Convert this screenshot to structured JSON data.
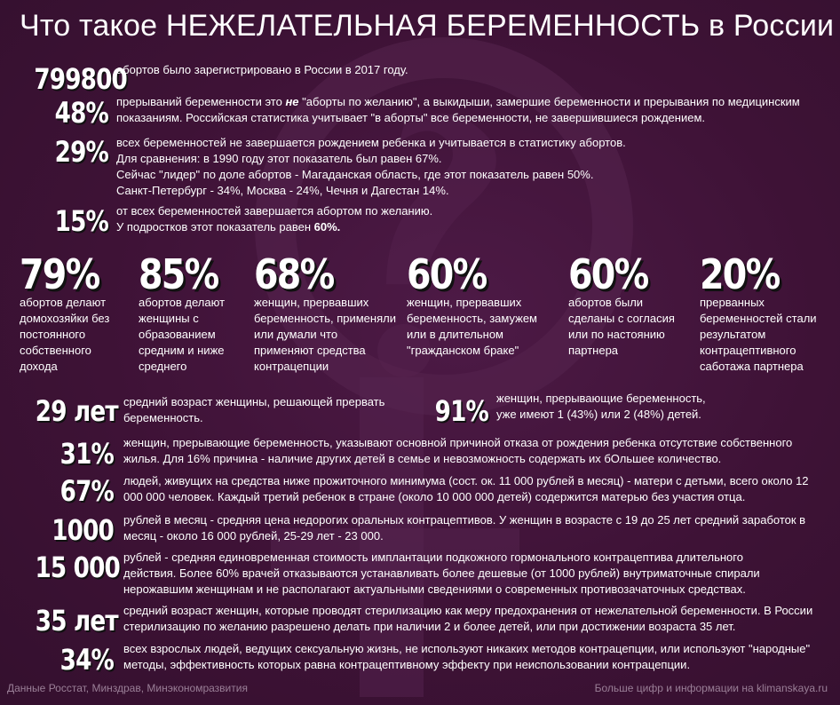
{
  "title": "Что такое НЕЖЕЛАТЕЛЬНАЯ БЕРЕМЕННОСТЬ в России",
  "rows_top": [
    {
      "num": "799800",
      "lines": [
        "абортов было зарегистрировано в России в 2017 году."
      ]
    },
    {
      "num": "48%",
      "lines_rich": "прерываний беременности это <b>не</b> \"аборты по желанию\", а выкидыши, замершие беременности и прерывания по медицинским показаниям. Российская статистика учитывает \"в аборты\" все беременности, не завершившиеся рождением."
    },
    {
      "num": "29%",
      "lines": [
        "всех беременностей не завершается рождением ребенка и учитывается в статистику абортов.",
        "Для сравнения: в 1990 году этот показатель был равен 67%.",
        "Сейчас \"лидер\" по доле абортов - Магаданская область, где этот показатель равен 50%.",
        "Санкт-Петербург - 34%, Москва - 24%, Чечня и Дагестан 14%."
      ]
    },
    {
      "num": "15%",
      "line1": "от всех беременностей завершается абортом по желанию.",
      "line2_prefix": "У подростков этот показатель равен ",
      "line2_bold": "60%."
    }
  ],
  "columns": [
    {
      "num": "79%",
      "text": "абортов делают домохозяйки без постоянного собственного дохода"
    },
    {
      "num": "85%",
      "text": "абортов делают женщины с образованием средним и ниже среднего"
    },
    {
      "num": "68%",
      "text": "женщин, прервавших беременность, применяли или думали что применяют средства контрацепции"
    },
    {
      "num": "60%",
      "text": "женщин, прервавших беременность, замужем или в длительном \"гражданском браке\""
    },
    {
      "num": "60%",
      "text": "абортов были сделаны с согласия или по настоянию партнера"
    },
    {
      "num": "20%",
      "text": "прерванных беременностей стали результатом контрацептивного саботажа партнера"
    }
  ],
  "mid_left": {
    "num": "29 лет",
    "text": "средний возраст женщины, решающей прервать беременность."
  },
  "mid_right": {
    "num": "91%",
    "text": "женщин, прерывающие беременность, уже имеют 1 (43%) или 2 (48%) детей."
  },
  "rows_bottom": [
    {
      "num": "31%",
      "text": "женщин, прерывающие беременность, указывают основной причиной отказа от рождения ребенка отсутствие собственного жилья. Для 16% причина - наличие других детей в семье и невозможность содержать их бОльшее количество."
    },
    {
      "num": "67%",
      "text": "людей, живущих на средства ниже прожиточного минимума (сост. ок. 11 000 рублей в месяц) - матери с детьми, всего около 12 000 000 человек. Каждый третий ребенок в стране (около 10 000 000 детей) содержится матерью без участия отца."
    },
    {
      "num": "1000",
      "text": "рублей в месяц - средняя цена недорогих оральных контрацептивов. У женщин в возрасте с 19 до 25 лет средний заработок в месяц - около 16 000 рублей, 25-29 лет - 23 000."
    },
    {
      "num": "15 000",
      "text": "рублей - средняя единовременная стоимость имплантации подкожного гормонального контрацептива длительного действия. Более 60% врачей отказываются устанавливать более дешевые (от 1000 рублей) внутриматочные спирали нерожавшим женщинам и не располагают актуальными сведениями о современных противозачаточных средствах."
    },
    {
      "num": "35 лет",
      "text": "средний возраст женщин, которые проводят стерилизацию как меру предохранения от нежелательной беременности. В России стерилизацию по желанию разрешено делать при наличии 2 и более детей, или при достижении возраста 35 лет."
    },
    {
      "num": "34%",
      "text": "всех взрослых людей, ведущих сексуальную жизнь, не используют никаких методов контрацепции, или используют \"народные\" методы, эффективность которых равна контрацептивному эффекту при неиспользовании контрацепции."
    }
  ],
  "footer_left": "Данные Росстат, Минздрав, Минэкономразвития",
  "footer_right": "Больше цифр и информации на klimanskaya.ru",
  "colors": {
    "background": "#3e1236",
    "symbol": "#5a2953",
    "text": "#ffffff",
    "footer": "#9a7f97"
  },
  "icons": {
    "background": "female-symbol-icon"
  }
}
